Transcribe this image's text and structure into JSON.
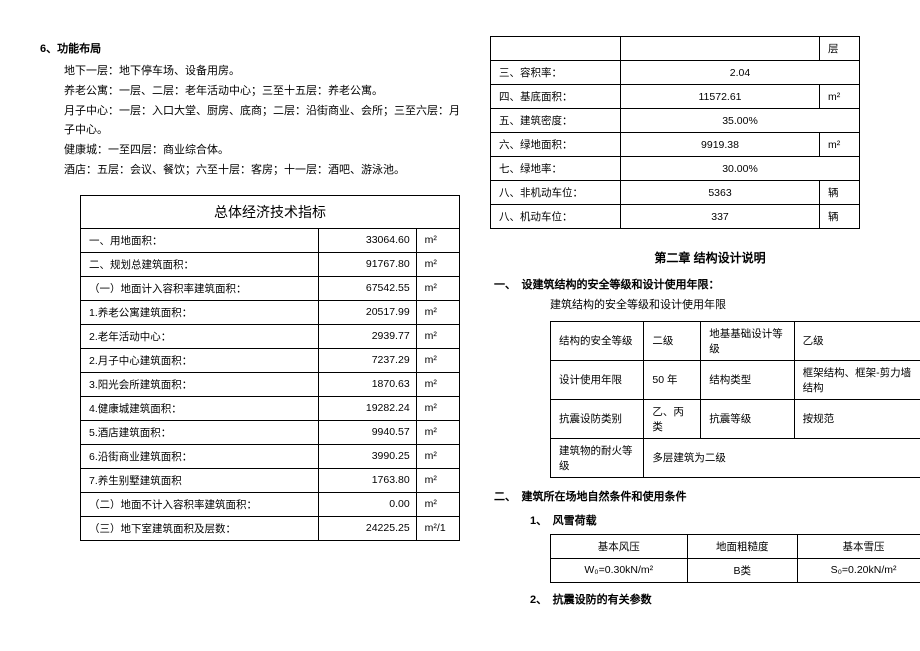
{
  "left": {
    "sec6_title": "6、功能布局",
    "lines": [
      "地下一层：地下停车场、设备用房。",
      "养老公寓：一层、二层：老年活动中心；三至十五层：养老公寓。",
      "月子中心：一层：入口大堂、厨房、底商；二层：沿街商业、会所；三至六层：月子中心。",
      "健康城：一至四层：商业综合体。",
      "酒店：五层：会议、餐饮；六至十层：客房；十一层：酒吧、游泳池。"
    ],
    "econ_title": "总体经济技术指标",
    "econ_rows": [
      {
        "label": "一、用地面积：",
        "val": "33064.60",
        "unit": "m²"
      },
      {
        "label": "二、规划总建筑面积：",
        "val": "91767.80",
        "unit": "m²"
      },
      {
        "label": "（一）地面计入容积率建筑面积：",
        "val": "67542.55",
        "unit": "m²"
      },
      {
        "label": "1.养老公寓建筑面积：",
        "val": "20517.99",
        "unit": "m²"
      },
      {
        "label": "2.老年活动中心：",
        "val": "2939.77",
        "unit": "m²"
      },
      {
        "label": "2.月子中心建筑面积：",
        "val": "7237.29",
        "unit": "m²"
      },
      {
        "label": "3.阳光会所建筑面积：",
        "val": "1870.63",
        "unit": "m²"
      },
      {
        "label": "4.健康城建筑面积：",
        "val": "19282.24",
        "unit": "m²"
      },
      {
        "label": "5.酒店建筑面积：",
        "val": "9940.57",
        "unit": "m²"
      },
      {
        "label": "6.沿街商业建筑面积：",
        "val": "3990.25",
        "unit": "m²"
      },
      {
        "label": "7.养生别墅建筑面积",
        "val": "1763.80",
        "unit": "m²"
      },
      {
        "label": "（二）地面不计入容积率建筑面积：",
        "val": "0.00",
        "unit": "m²"
      },
      {
        "label": "（三）地下室建筑面积及层数：",
        "val": "24225.25",
        "unit": "m²/1"
      }
    ]
  },
  "right": {
    "top_rows": [
      {
        "label": "",
        "val": "",
        "unit": "层",
        "val_colspan": 1
      },
      {
        "label": "三、容积率：",
        "val": "2.04",
        "unit": "",
        "val_colspan": 2
      },
      {
        "label": "四、基底面积：",
        "val": "11572.61",
        "unit": "m²",
        "val_colspan": 1
      },
      {
        "label": "五、建筑密度：",
        "val": "35.00%",
        "unit": "",
        "val_colspan": 2
      },
      {
        "label": "六、绿地面积：",
        "val": "9919.38",
        "unit": "m²",
        "val_colspan": 1
      },
      {
        "label": "七、绿地率：",
        "val": "30.00%",
        "unit": "",
        "val_colspan": 2
      },
      {
        "label": "八、非机动车位：",
        "val": "5363",
        "unit": "辆",
        "val_colspan": 1
      },
      {
        "label": "八、机动车位：",
        "val": "337",
        "unit": "辆",
        "val_colspan": 1
      }
    ],
    "chapter": "第二章  结构设计说明",
    "sec1_title": "一、　设建筑结构的安全等级和设计使用年限：",
    "sec1_sub": "建筑结构的安全等级和设计使用年限",
    "struct_rows": [
      [
        "结构的安全等级",
        "二级",
        "地基基础设计等级",
        "乙级"
      ],
      [
        "设计使用年限",
        "50 年",
        "结构类型",
        "框架结构、框架-剪力墙结构"
      ],
      [
        "抗震设防类别",
        "乙、丙类",
        "抗震等级",
        "按规范"
      ],
      [
        "建筑物的耐火等级",
        "多层建筑为二级",
        "",
        ""
      ]
    ],
    "sec2_title": "二、　建筑所在场地自然条件和使用条件",
    "sec2_1": "1、　风雪荷载",
    "wind_head": [
      "基本风压",
      "地面粗糙度",
      "基本雪压"
    ],
    "wind_row": [
      "W₀=0.30kN/m²",
      "B类",
      "S₀=0.20kN/m²"
    ],
    "sec2_2": "2、　抗震设防的有关参数"
  }
}
